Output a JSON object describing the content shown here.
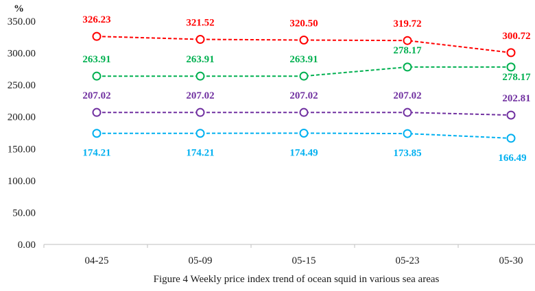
{
  "chart_data": {
    "type": "line",
    "caption": "Figure 4 Weekly price index trend of ocean squid in various sea areas",
    "ylabel": "%",
    "xlabel": "",
    "categories": [
      "04-25",
      "05-09",
      "05-15",
      "05-23",
      "05-30"
    ],
    "ylim": [
      0,
      350
    ],
    "yticks": [
      0,
      50,
      100,
      150,
      200,
      250,
      300,
      350
    ],
    "ytick_labels": [
      "0.00",
      "50.00",
      "100.00",
      "150.00",
      "200.00",
      "250.00",
      "300.00",
      "350.00"
    ],
    "grid": false,
    "legend": "none",
    "line_style": "dashed",
    "marker": "open-circle",
    "series": [
      {
        "color": "#ff0000",
        "values": [
          326.23,
          321.52,
          320.5,
          319.72,
          300.72
        ],
        "labels": [
          "326.23",
          "321.52",
          "320.50",
          "319.72",
          "300.72"
        ]
      },
      {
        "color": "#00b050",
        "values": [
          263.91,
          263.91,
          263.91,
          278.17,
          278.17
        ],
        "labels": [
          "263.91",
          "263.91",
          "263.91",
          "278.17",
          "278.17"
        ]
      },
      {
        "color": "#7030a0",
        "values": [
          207.02,
          207.02,
          207.02,
          207.02,
          202.81
        ],
        "labels": [
          "207.02",
          "207.02",
          "207.02",
          "207.02",
          "202.81"
        ]
      },
      {
        "color": "#00b0f0",
        "values": [
          174.21,
          174.21,
          174.49,
          173.85,
          166.49
        ],
        "labels": [
          "174.21",
          "174.21",
          "174.49",
          "173.85",
          "166.49"
        ]
      }
    ]
  }
}
